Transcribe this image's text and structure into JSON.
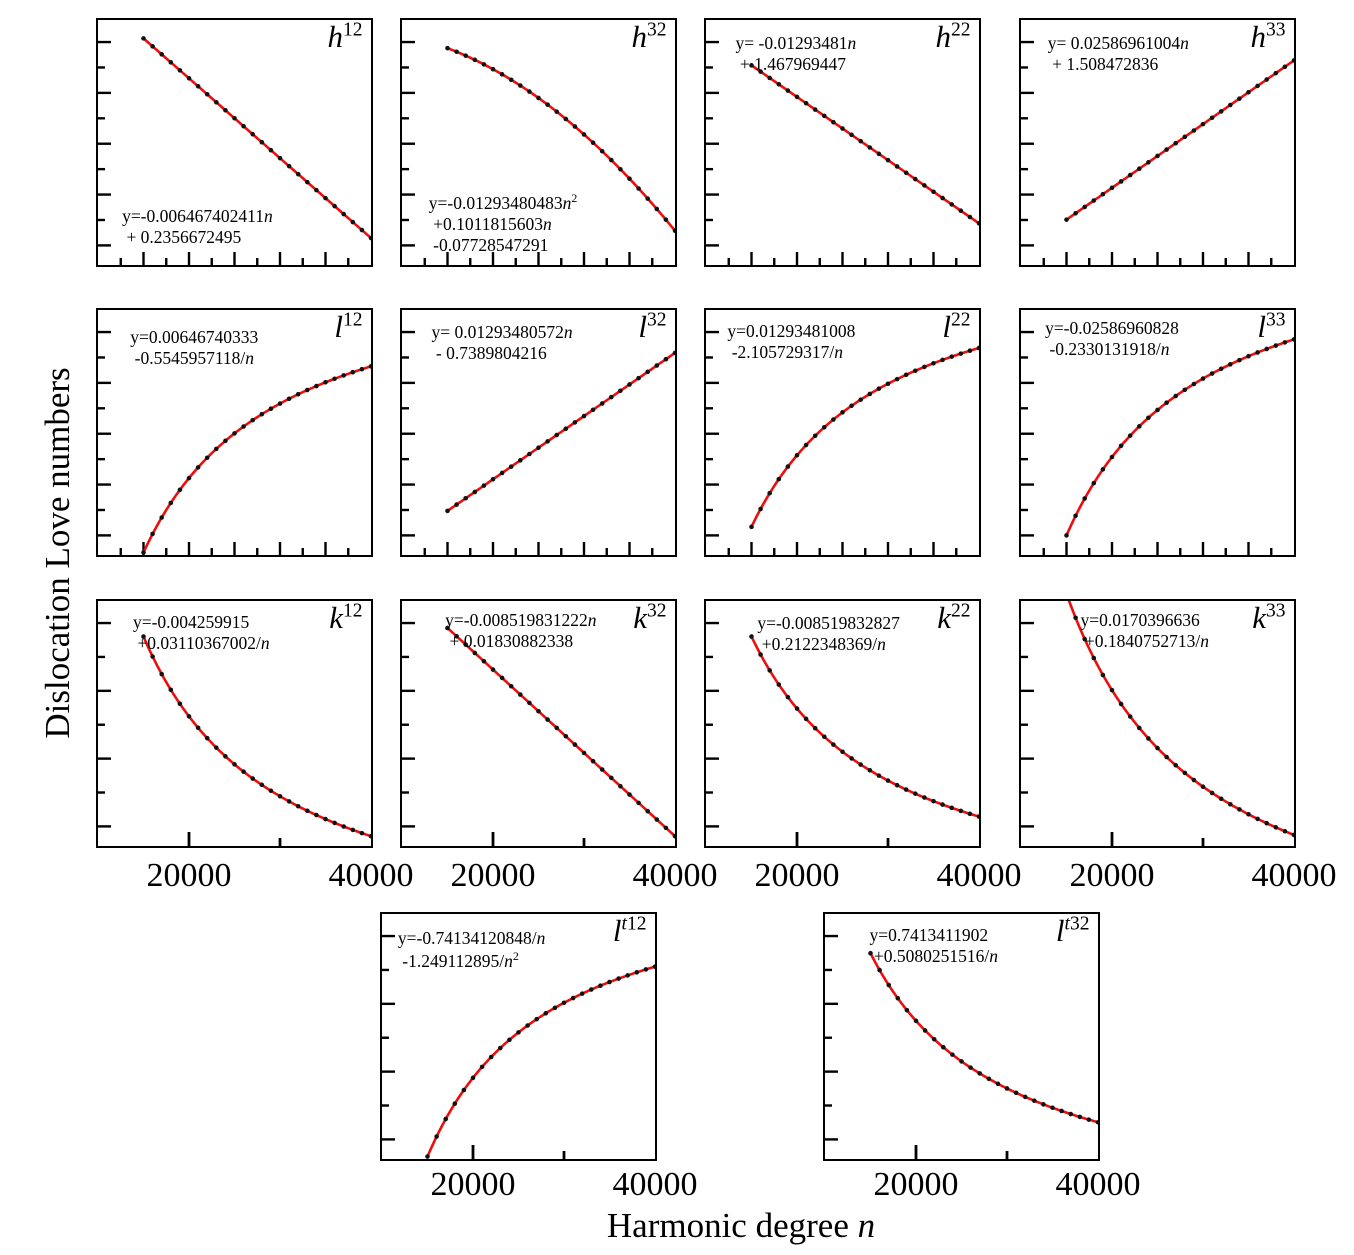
{
  "figure": {
    "ylabel": "Dislocation Love numbers",
    "xlabel": {
      "text": "Harmonic degree ",
      "var": "n"
    },
    "background": "#ffffff",
    "colors": {
      "curve": "#ee0d0d",
      "points": "#111111",
      "axis": "#000000",
      "text": "#000000"
    }
  },
  "chart_data": {
    "type": "line",
    "xlabel": "Harmonic degree n",
    "ylabel": "Dislocation Love numbers",
    "x_range": [
      10000,
      40000
    ],
    "x_points": {
      "start": 15000,
      "end": 40000,
      "step": 1000
    },
    "x_tick_labels": [
      "20000",
      "40000"
    ],
    "x_tick_values": [
      20000,
      40000
    ],
    "grid": false,
    "panels": [
      {
        "id": "h12",
        "row": 0,
        "col": 0,
        "label": {
          "base": "h",
          "sup": "12"
        },
        "equation_lines": [
          "y=-0.006467402411n",
          " + 0.2356672495"
        ],
        "curve": {
          "kind": "linear",
          "a": -0.006467402411,
          "b": 0.2356672495
        },
        "eq_pos": {
          "x": 0.09,
          "y": 0.76
        },
        "y_span": {
          "top": 0.075,
          "bottom": 0.89
        }
      },
      {
        "id": "h32",
        "row": 0,
        "col": 1,
        "label": {
          "base": "h",
          "sup": "32"
        },
        "equation_lines": [
          "y=-0.01293480483n²",
          " +0.1011815603n",
          " -0.07728547291"
        ],
        "curve": {
          "kind": "quad",
          "a": -0.01293480483,
          "b": 0.1011815603,
          "c": -0.07728547291
        },
        "eq_pos": {
          "x": 0.1,
          "y": 0.7
        },
        "y_span": {
          "top": 0.115,
          "bottom": 0.86
        }
      },
      {
        "id": "h22",
        "row": 0,
        "col": 2,
        "label": {
          "base": "h",
          "sup": "22"
        },
        "equation_lines": [
          "y= -0.01293481n",
          " + 1.467969447"
        ],
        "curve": {
          "kind": "linear",
          "a": -0.01293481,
          "b": 1.467969447
        },
        "eq_pos": {
          "x": 0.11,
          "y": 0.055
        },
        "y_span": {
          "top": 0.185,
          "bottom": 0.83
        }
      },
      {
        "id": "h33",
        "row": 0,
        "col": 3,
        "label": {
          "base": "h",
          "sup": "33"
        },
        "equation_lines": [
          "y= 0.02586961004n",
          " + 1.508472836"
        ],
        "curve": {
          "kind": "linear",
          "a": 0.02586961004,
          "b": 1.508472836
        },
        "eq_pos": {
          "x": 0.1,
          "y": 0.055
        },
        "y_span": {
          "top": 0.165,
          "bottom": 0.815
        }
      },
      {
        "id": "l12",
        "row": 1,
        "col": 0,
        "label": {
          "base": "l",
          "sup": "12"
        },
        "equation_lines": [
          "y=0.00646740333",
          " -0.5545957118/n"
        ],
        "curve": {
          "kind": "inv",
          "a": 0.00646740333,
          "b": -0.5545957118
        },
        "eq_pos": {
          "x": 0.12,
          "y": 0.07
        },
        "y_span": {
          "top": 0.23,
          "bottom": 0.99
        }
      },
      {
        "id": "l32",
        "row": 1,
        "col": 1,
        "label": {
          "base": "l",
          "sup": "32"
        },
        "equation_lines": [
          "y= 0.01293480572n",
          " - 0.7389804216"
        ],
        "curve": {
          "kind": "linear",
          "a": 0.01293480572,
          "b": -0.7389804216
        },
        "eq_pos": {
          "x": 0.11,
          "y": 0.05
        },
        "y_span": {
          "top": 0.175,
          "bottom": 0.82
        }
      },
      {
        "id": "l22",
        "row": 1,
        "col": 2,
        "label": {
          "base": "l",
          "sup": "22"
        },
        "equation_lines": [
          "y=0.01293481008",
          " -2.105729317/n"
        ],
        "curve": {
          "kind": "inv",
          "a": 0.01293481008,
          "b": -2.105729317
        },
        "eq_pos": {
          "x": 0.08,
          "y": 0.045
        },
        "y_span": {
          "top": 0.155,
          "bottom": 0.885
        }
      },
      {
        "id": "l33",
        "row": 1,
        "col": 3,
        "label": {
          "base": "l",
          "sup": "33"
        },
        "equation_lines": [
          "y=-0.02586960828",
          " -0.2330131918/n"
        ],
        "curve": {
          "kind": "inv",
          "a": -0.02586960828,
          "b": -0.2330131918
        },
        "eq_pos": {
          "x": 0.09,
          "y": 0.035
        },
        "y_span": {
          "top": 0.12,
          "bottom": 0.92
        }
      },
      {
        "id": "k12",
        "row": 2,
        "col": 0,
        "label": {
          "base": "k",
          "sup": "12"
        },
        "equation_lines": [
          "y=-0.004259915",
          " +0.03110367002/n"
        ],
        "curve": {
          "kind": "inv",
          "a": -0.004259915,
          "b": 0.03110367002
        },
        "eq_pos": {
          "x": 0.13,
          "y": 0.045
        },
        "y_span": {
          "top": 0.145,
          "bottom": 0.96
        }
      },
      {
        "id": "k32",
        "row": 2,
        "col": 1,
        "label": {
          "base": "k",
          "sup": "32"
        },
        "equation_lines": [
          "y=-0.008519831222n",
          " + 0.01830882338"
        ],
        "curve": {
          "kind": "linear",
          "a": -0.008519831222,
          "b": 0.01830882338
        },
        "eq_pos": {
          "x": 0.16,
          "y": 0.04
        },
        "y_span": {
          "top": 0.11,
          "bottom": 0.96
        }
      },
      {
        "id": "k22",
        "row": 2,
        "col": 2,
        "label": {
          "base": "k",
          "sup": "22"
        },
        "equation_lines": [
          "y=-0.008519832827",
          " +0.2122348369/n"
        ],
        "curve": {
          "kind": "inv",
          "a": -0.008519832827,
          "b": 0.2122348369
        },
        "eq_pos": {
          "x": 0.19,
          "y": 0.05
        },
        "y_span": {
          "top": 0.145,
          "bottom": 0.88
        }
      },
      {
        "id": "k33",
        "row": 2,
        "col": 3,
        "label": {
          "base": "k",
          "sup": "33"
        },
        "equation_lines": [
          "y=0.0170396636",
          " +0.1840752713/n"
        ],
        "curve": {
          "kind": "inv",
          "a": 0.0170396636,
          "b": 0.1840752713
        },
        "eq_pos": {
          "x": 0.22,
          "y": 0.04
        },
        "y_span": {
          "top": -0.03,
          "bottom": 0.955
        }
      },
      {
        "id": "lt12",
        "row": 3,
        "col": 0,
        "label": {
          "base": "l",
          "sup": "t12"
        },
        "equation_lines": [
          "y=-0.74134120848/n",
          " -1.249112895/n²"
        ],
        "curve": {
          "kind": "inv2",
          "a": -0.74134120848,
          "b": -1.249112895
        },
        "eq_pos": {
          "x": 0.06,
          "y": 0.06
        },
        "y_span": {
          "top": 0.215,
          "bottom": 0.99
        }
      },
      {
        "id": "lt32",
        "row": 3,
        "col": 1,
        "label": {
          "base": "l",
          "sup": "t32"
        },
        "equation_lines": [
          "y=0.7413411902",
          " +0.5080251516/n"
        ],
        "curve": {
          "kind": "inv",
          "a": 0.7413411902,
          "b": 0.5080251516
        },
        "eq_pos": {
          "x": 0.165,
          "y": 0.045
        },
        "y_span": {
          "top": 0.16,
          "bottom": 0.85
        }
      }
    ]
  }
}
